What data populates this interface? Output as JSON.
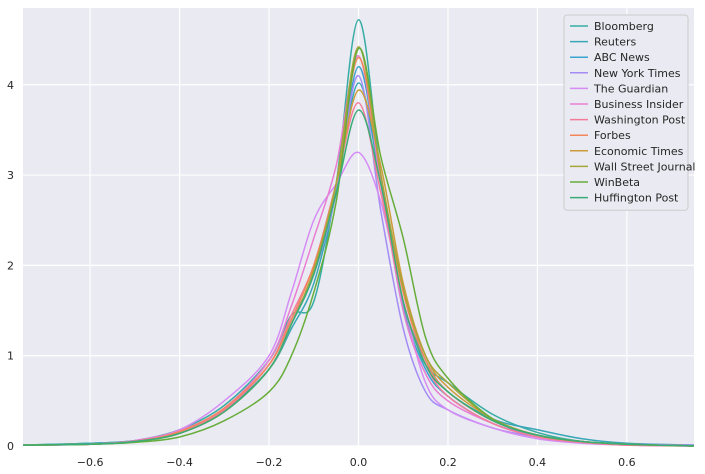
{
  "chart_data": {
    "type": "line",
    "title": "",
    "xlabel": "",
    "ylabel": "",
    "xlim": [
      -0.75,
      0.75
    ],
    "ylim": [
      0,
      4.85
    ],
    "xticks": [
      -0.6,
      -0.4,
      -0.2,
      0.0,
      0.2,
      0.4,
      0.6
    ],
    "xtick_labels": [
      "−0.6",
      "−0.4",
      "−0.2",
      "0.0",
      "0.2",
      "0.4",
      "0.6"
    ],
    "yticks": [
      0,
      1,
      2,
      3,
      4
    ],
    "ytick_labels": [
      "0",
      "1",
      "2",
      "3",
      "4"
    ],
    "grid": true,
    "legend_position": "top-right",
    "background": "#EAEAF2",
    "x": [
      -0.75,
      -0.6,
      -0.5,
      -0.4,
      -0.3,
      -0.2,
      -0.15,
      -0.1,
      -0.05,
      0.0,
      0.05,
      0.1,
      0.15,
      0.2,
      0.3,
      0.4,
      0.5,
      0.6,
      0.75
    ],
    "series": [
      {
        "name": "Bloomberg",
        "color": "#36ada4",
        "values": [
          0.01,
          0.03,
          0.06,
          0.18,
          0.45,
          0.95,
          1.45,
          1.6,
          2.9,
          4.72,
          3.0,
          1.5,
          0.9,
          0.7,
          0.35,
          0.15,
          0.05,
          0.02,
          0.01
        ]
      },
      {
        "name": "Reuters",
        "color": "#39a7b7",
        "values": [
          0.01,
          0.03,
          0.06,
          0.16,
          0.4,
          0.85,
          1.3,
          1.8,
          2.8,
          4.02,
          2.9,
          1.6,
          0.95,
          0.6,
          0.3,
          0.18,
          0.08,
          0.03,
          0.01
        ]
      },
      {
        "name": "ABC News",
        "color": "#3ba3d0",
        "values": [
          0.01,
          0.02,
          0.05,
          0.14,
          0.38,
          0.85,
          1.35,
          1.9,
          2.8,
          4.2,
          2.9,
          1.55,
          0.85,
          0.55,
          0.25,
          0.12,
          0.05,
          0.02,
          0.01
        ]
      },
      {
        "name": "New York Times",
        "color": "#a48cf4",
        "values": [
          0.01,
          0.02,
          0.05,
          0.15,
          0.4,
          0.9,
          1.4,
          1.9,
          2.8,
          4.1,
          2.6,
          1.3,
          0.6,
          0.4,
          0.2,
          0.1,
          0.04,
          0.02,
          0.01
        ]
      },
      {
        "name": "The Guardian",
        "color": "#d58cf4",
        "values": [
          0.01,
          0.02,
          0.06,
          0.18,
          0.5,
          1.0,
          1.7,
          2.5,
          2.9,
          3.25,
          2.7,
          1.6,
          0.7,
          0.4,
          0.2,
          0.08,
          0.03,
          0.01,
          0.0
        ]
      },
      {
        "name": "Business Insider",
        "color": "#e97ed2",
        "values": [
          0.01,
          0.02,
          0.06,
          0.17,
          0.42,
          0.95,
          1.55,
          2.3,
          3.1,
          4.32,
          2.9,
          1.5,
          0.8,
          0.5,
          0.25,
          0.1,
          0.04,
          0.01,
          0.0
        ]
      },
      {
        "name": "Washington Post",
        "color": "#f47c9a",
        "values": [
          0.01,
          0.02,
          0.05,
          0.15,
          0.4,
          0.9,
          1.45,
          2.0,
          2.9,
          3.8,
          2.8,
          1.6,
          0.9,
          0.55,
          0.25,
          0.1,
          0.04,
          0.01,
          0.0
        ]
      },
      {
        "name": "Forbes",
        "color": "#f3865b",
        "values": [
          0.01,
          0.02,
          0.05,
          0.16,
          0.42,
          0.9,
          1.4,
          2.0,
          2.9,
          4.3,
          3.0,
          1.7,
          0.95,
          0.6,
          0.28,
          0.12,
          0.05,
          0.02,
          0.0
        ]
      },
      {
        "name": "Economic Times",
        "color": "#cc9c3a",
        "values": [
          0.01,
          0.02,
          0.05,
          0.14,
          0.38,
          0.85,
          1.35,
          1.95,
          2.9,
          3.94,
          3.1,
          1.8,
          1.0,
          0.65,
          0.3,
          0.12,
          0.05,
          0.02,
          0.0
        ]
      },
      {
        "name": "Wall Street Journal",
        "color": "#a7a63a",
        "values": [
          0.01,
          0.02,
          0.05,
          0.14,
          0.38,
          0.85,
          1.35,
          1.95,
          2.9,
          4.42,
          3.0,
          1.75,
          1.0,
          0.7,
          0.3,
          0.12,
          0.05,
          0.02,
          0.0
        ]
      },
      {
        "name": "WinBeta",
        "color": "#66ad3a",
        "values": [
          0.01,
          0.02,
          0.04,
          0.1,
          0.28,
          0.6,
          1.0,
          1.7,
          2.7,
          4.4,
          3.2,
          2.3,
          1.2,
          0.75,
          0.3,
          0.12,
          0.05,
          0.02,
          0.0
        ]
      },
      {
        "name": "Huffington Post",
        "color": "#3aad76",
        "values": [
          0.01,
          0.02,
          0.05,
          0.14,
          0.38,
          0.85,
          1.35,
          1.9,
          2.8,
          3.72,
          2.9,
          1.6,
          0.9,
          0.6,
          0.28,
          0.12,
          0.05,
          0.02,
          0.0
        ]
      }
    ]
  }
}
